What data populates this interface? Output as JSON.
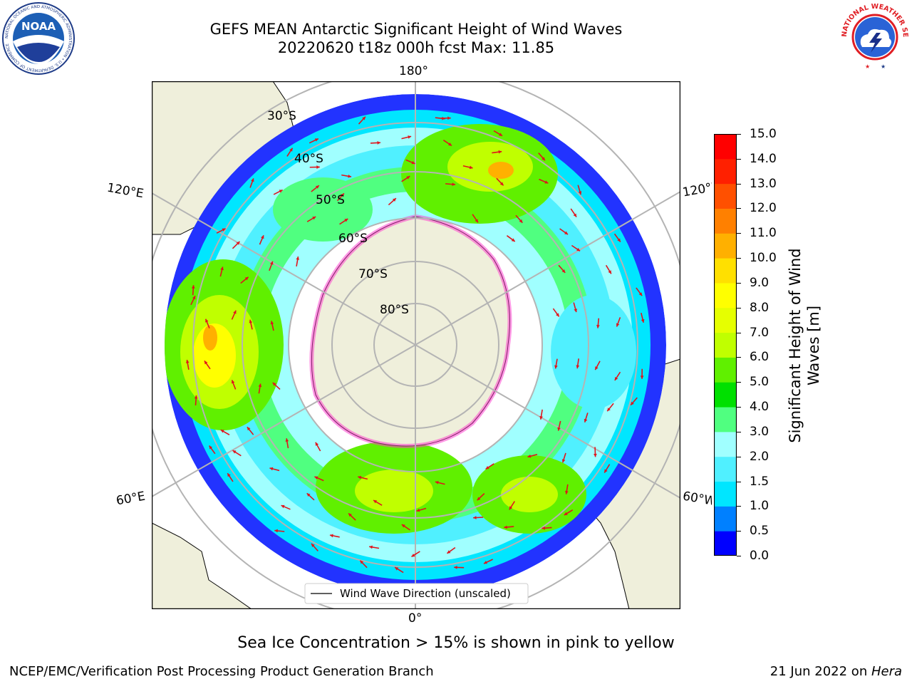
{
  "header": {
    "title_line1": "GEFS MEAN Antarctic Significant Height of Wind Waves",
    "title_line2": "20220620 t18z 000h fcst   Max: 11.85"
  },
  "logos": {
    "noaa": {
      "text": "NOAA",
      "ring_text": "NATIONAL OCEANIC AND ATMOSPHERIC ADMINISTRATION • U.S. DEPARTMENT OF COMMERCE"
    },
    "nws": {
      "ring_text": "NATIONAL WEATHER SERVICE"
    }
  },
  "map": {
    "projection": "south-polar-stereographic",
    "longitude_labels": {
      "top": "180°",
      "bottom": "0°",
      "upper_left": "120°E",
      "lower_left": "60°E",
      "upper_right": "120°W",
      "lower_right": "60°W"
    },
    "latitude_labels": [
      "30°S",
      "40°S",
      "50°S",
      "60°S",
      "70°S",
      "80°S"
    ],
    "legend_label": "Wind Wave Direction (unscaled)",
    "max_value": 11.85,
    "colors": {
      "land": "#efefdb",
      "grid": "#b4b4b4",
      "arrows": "#e0141c",
      "sea_ice": "#ff33cc"
    }
  },
  "colorbar": {
    "label": "Significant Height of Wind Waves [m]",
    "label_line1": "Significant Height of Wind",
    "label_line2": "Waves [m]",
    "ticks": [
      "15.0",
      "14.0",
      "13.0",
      "12.0",
      "11.0",
      "10.0",
      "9.0",
      "8.0",
      "7.0",
      "6.0",
      "5.0",
      "4.0",
      "3.0",
      "2.0",
      "1.5",
      "1.0",
      "0.5",
      "0.0"
    ],
    "levels": [
      0.0,
      0.5,
      1.0,
      1.5,
      2.0,
      3.0,
      4.0,
      5.0,
      6.0,
      7.0,
      8.0,
      9.0,
      10.0,
      11.0,
      12.0,
      13.0,
      14.0,
      15.0
    ],
    "colors": [
      "#0000ff",
      "#0080ff",
      "#00e6ff",
      "#50f0ff",
      "#a0ffff",
      "#50ff80",
      "#00e000",
      "#60f000",
      "#c0ff00",
      "#e6ff00",
      "#ffff00",
      "#ffe000",
      "#ffb000",
      "#ff8000",
      "#ff5000",
      "#ff2000",
      "#ff0000"
    ]
  },
  "caption": "Sea Ice Concentration > 15% is shown in pink to yellow",
  "footer": {
    "left": "NCEP/EMC/Verification Post Processing Product Generation Branch",
    "right_prefix": "21 Jun 2022 on ",
    "right_italic": "Hera"
  }
}
